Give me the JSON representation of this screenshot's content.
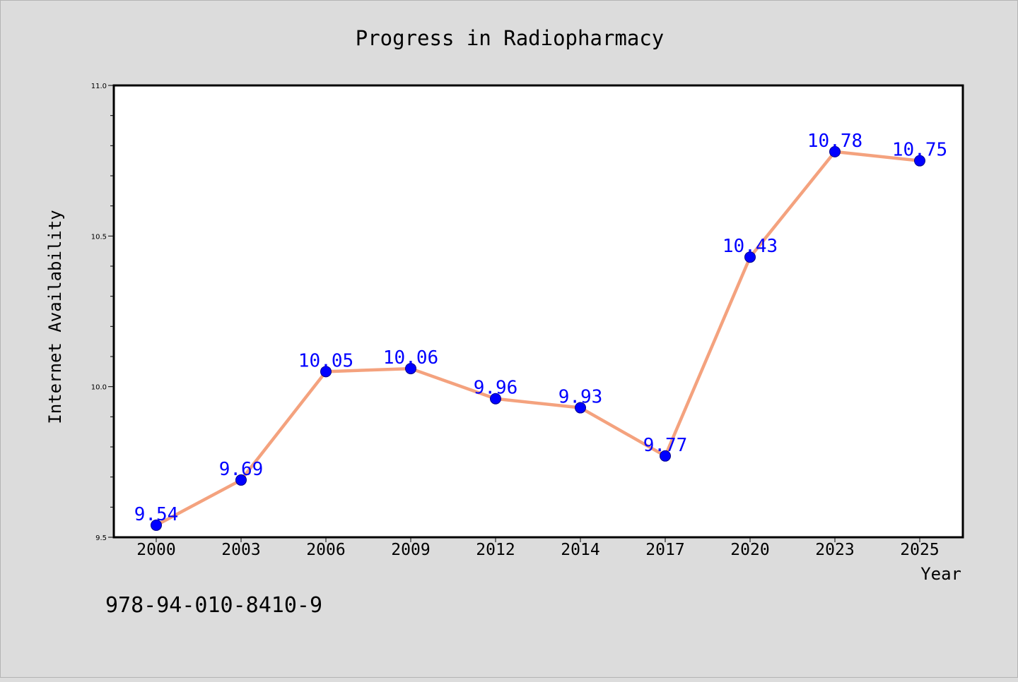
{
  "chart_data": {
    "type": "line",
    "title": "Progress in Radiopharmacy",
    "xlabel": "Year",
    "ylabel": "Internet Availability",
    "x": [
      "2000",
      "2003",
      "2006",
      "2009",
      "2012",
      "2014",
      "2017",
      "2020",
      "2023",
      "2025"
    ],
    "series": [
      {
        "values": [
          9.54,
          9.69,
          10.05,
          10.06,
          9.96,
          9.93,
          9.77,
          10.43,
          10.78,
          10.75
        ],
        "data_labels": [
          "9.54",
          "9.69",
          "10.05",
          "10.06",
          "9.96",
          "9.93",
          "9.77",
          "10.43",
          "10.78",
          "10.75"
        ],
        "line_color": "#f4a27e",
        "marker_color": "#0000ff"
      }
    ],
    "ylim": [
      9.5,
      11.0
    ],
    "yticks": [
      "9.5",
      "10.0",
      "10.5",
      "11.0"
    ],
    "grid": false,
    "background": "#dcdcdc",
    "plot_background": "#ffffff"
  },
  "footnote": "978-94-010-8410-9"
}
